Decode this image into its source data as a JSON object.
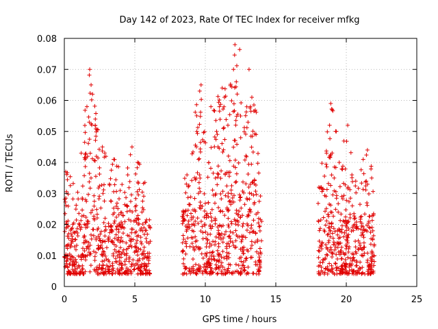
{
  "chart_data": {
    "type": "scatter",
    "title": "Day 142 of 2023, Rate Of TEC Index for receiver mfkg",
    "xlabel": "GPS time / hours",
    "ylabel": "ROTI / TECUs",
    "xlim": [
      0,
      25
    ],
    "ylim": [
      0,
      0.08
    ],
    "xticks": [
      0,
      5,
      10,
      15,
      20,
      25
    ],
    "xtick_labels": [
      "0",
      "5",
      "10",
      "15",
      "20",
      "25"
    ],
    "yticks": [
      0,
      0.01,
      0.02,
      0.03,
      0.04,
      0.05,
      0.06,
      0.07,
      0.08
    ],
    "ytick_labels": [
      "0",
      "0.01",
      "0.02",
      "0.03",
      "0.04",
      "0.05",
      "0.06",
      "0.07",
      "0.08"
    ],
    "grid": true,
    "marker": "+",
    "color": "#e00000",
    "series": [
      {
        "name": "ROTI",
        "segments": [
          {
            "x_range": [
              0.0,
              6.1
            ],
            "base_range": [
              0.004,
              0.022
            ],
            "peaks": [
              {
                "x": 1.8,
                "y": 0.07
              },
              {
                "x": 1.9,
                "y": 0.065
              },
              {
                "x": 2.0,
                "y": 0.062
              },
              {
                "x": 1.6,
                "y": 0.058
              },
              {
                "x": 2.2,
                "y": 0.054
              },
              {
                "x": 1.2,
                "y": 0.043
              },
              {
                "x": 0.1,
                "y": 0.037
              },
              {
                "x": 2.7,
                "y": 0.045
              },
              {
                "x": 3.5,
                "y": 0.041
              },
              {
                "x": 4.8,
                "y": 0.045
              },
              {
                "x": 5.2,
                "y": 0.04
              },
              {
                "x": 4.5,
                "y": 0.036
              }
            ]
          },
          {
            "x_range": [
              8.3,
              14.0
            ],
            "base_range": [
              0.004,
              0.025
            ],
            "peaks": [
              {
                "x": 12.1,
                "y": 0.078
              },
              {
                "x": 13.1,
                "y": 0.07
              },
              {
                "x": 12.0,
                "y": 0.07
              },
              {
                "x": 12.2,
                "y": 0.066
              },
              {
                "x": 9.7,
                "y": 0.065
              },
              {
                "x": 9.6,
                "y": 0.063
              },
              {
                "x": 11.2,
                "y": 0.064
              },
              {
                "x": 13.3,
                "y": 0.061
              },
              {
                "x": 10.4,
                "y": 0.058
              },
              {
                "x": 11.0,
                "y": 0.058
              },
              {
                "x": 13.2,
                "y": 0.058
              },
              {
                "x": 9.4,
                "y": 0.05
              },
              {
                "x": 10.8,
                "y": 0.05
              },
              {
                "x": 12.5,
                "y": 0.055
              },
              {
                "x": 8.7,
                "y": 0.036
              },
              {
                "x": 13.6,
                "y": 0.049
              },
              {
                "x": 11.6,
                "y": 0.052
              }
            ]
          },
          {
            "x_range": [
              18.0,
              22.0
            ],
            "base_range": [
              0.004,
              0.022
            ],
            "peaks": [
              {
                "x": 18.9,
                "y": 0.059
              },
              {
                "x": 19.0,
                "y": 0.057
              },
              {
                "x": 20.1,
                "y": 0.052
              },
              {
                "x": 18.6,
                "y": 0.043
              },
              {
                "x": 19.5,
                "y": 0.04
              },
              {
                "x": 21.5,
                "y": 0.044
              },
              {
                "x": 20.4,
                "y": 0.036
              },
              {
                "x": 21.2,
                "y": 0.041
              },
              {
                "x": 18.2,
                "y": 0.032
              }
            ]
          }
        ]
      }
    ]
  }
}
